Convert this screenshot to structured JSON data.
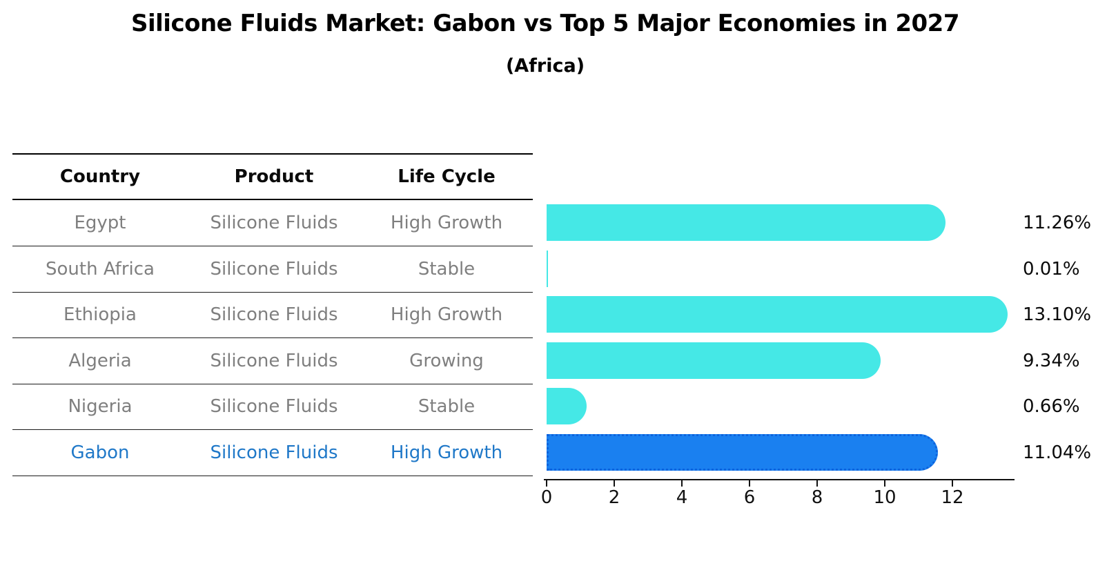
{
  "title": "Silicone Fluids Market: Gabon vs Top 5 Major Economies in 2027",
  "subtitle": "(Africa)",
  "colors": {
    "bar": "#45e8e6",
    "highlight_bar": "#1a80f0",
    "highlight_bar_border": "#0d63dd",
    "highlight_text": "#1f78c8",
    "row_text": "#7f7f7f",
    "header_text": "#0a0a0a",
    "axis": "#111111"
  },
  "table": {
    "columns": [
      "Country",
      "Product",
      "Life Cycle"
    ]
  },
  "chart_data": {
    "type": "bar",
    "orientation": "horizontal",
    "title": "Silicone Fluids Market: Gabon vs Top 5 Major Economies in 2027",
    "subtitle": "(Africa)",
    "categories": [
      "Egypt",
      "South Africa",
      "Ethiopia",
      "Algeria",
      "Nigeria",
      "Gabon"
    ],
    "values": [
      11.26,
      0.01,
      13.1,
      9.34,
      0.66,
      11.04
    ],
    "value_labels": [
      "11.26%",
      "0.01%",
      "13.10%",
      "9.34%",
      "0.66%",
      "11.04%"
    ],
    "rows": [
      {
        "country": "Egypt",
        "product": "Silicone Fluids",
        "life_cycle": "High Growth",
        "value": 11.26,
        "label": "11.26%",
        "highlighted": false
      },
      {
        "country": "South Africa",
        "product": "Silicone Fluids",
        "life_cycle": "Stable",
        "value": 0.01,
        "label": "0.01%",
        "highlighted": false
      },
      {
        "country": "Ethiopia",
        "product": "Silicone Fluids",
        "life_cycle": "High Growth",
        "value": 13.1,
        "label": "13.10%",
        "highlighted": false
      },
      {
        "country": "Algeria",
        "product": "Silicone Fluids",
        "life_cycle": "Growing",
        "value": 9.34,
        "label": "9.34%",
        "highlighted": false
      },
      {
        "country": "Nigeria",
        "product": "Silicone Fluids",
        "life_cycle": "Stable",
        "value": 0.66,
        "label": "0.66%",
        "highlighted": false
      },
      {
        "country": "Gabon",
        "product": "Silicone Fluids",
        "life_cycle": "High Growth",
        "value": 11.04,
        "label": "11.04%",
        "highlighted": true
      }
    ],
    "xlabel": "",
    "ylabel": "",
    "x_ticks": [
      0,
      2,
      4,
      6,
      8,
      10,
      12
    ],
    "xlim": [
      0,
      13.84
    ],
    "grid": false,
    "legend": false
  }
}
